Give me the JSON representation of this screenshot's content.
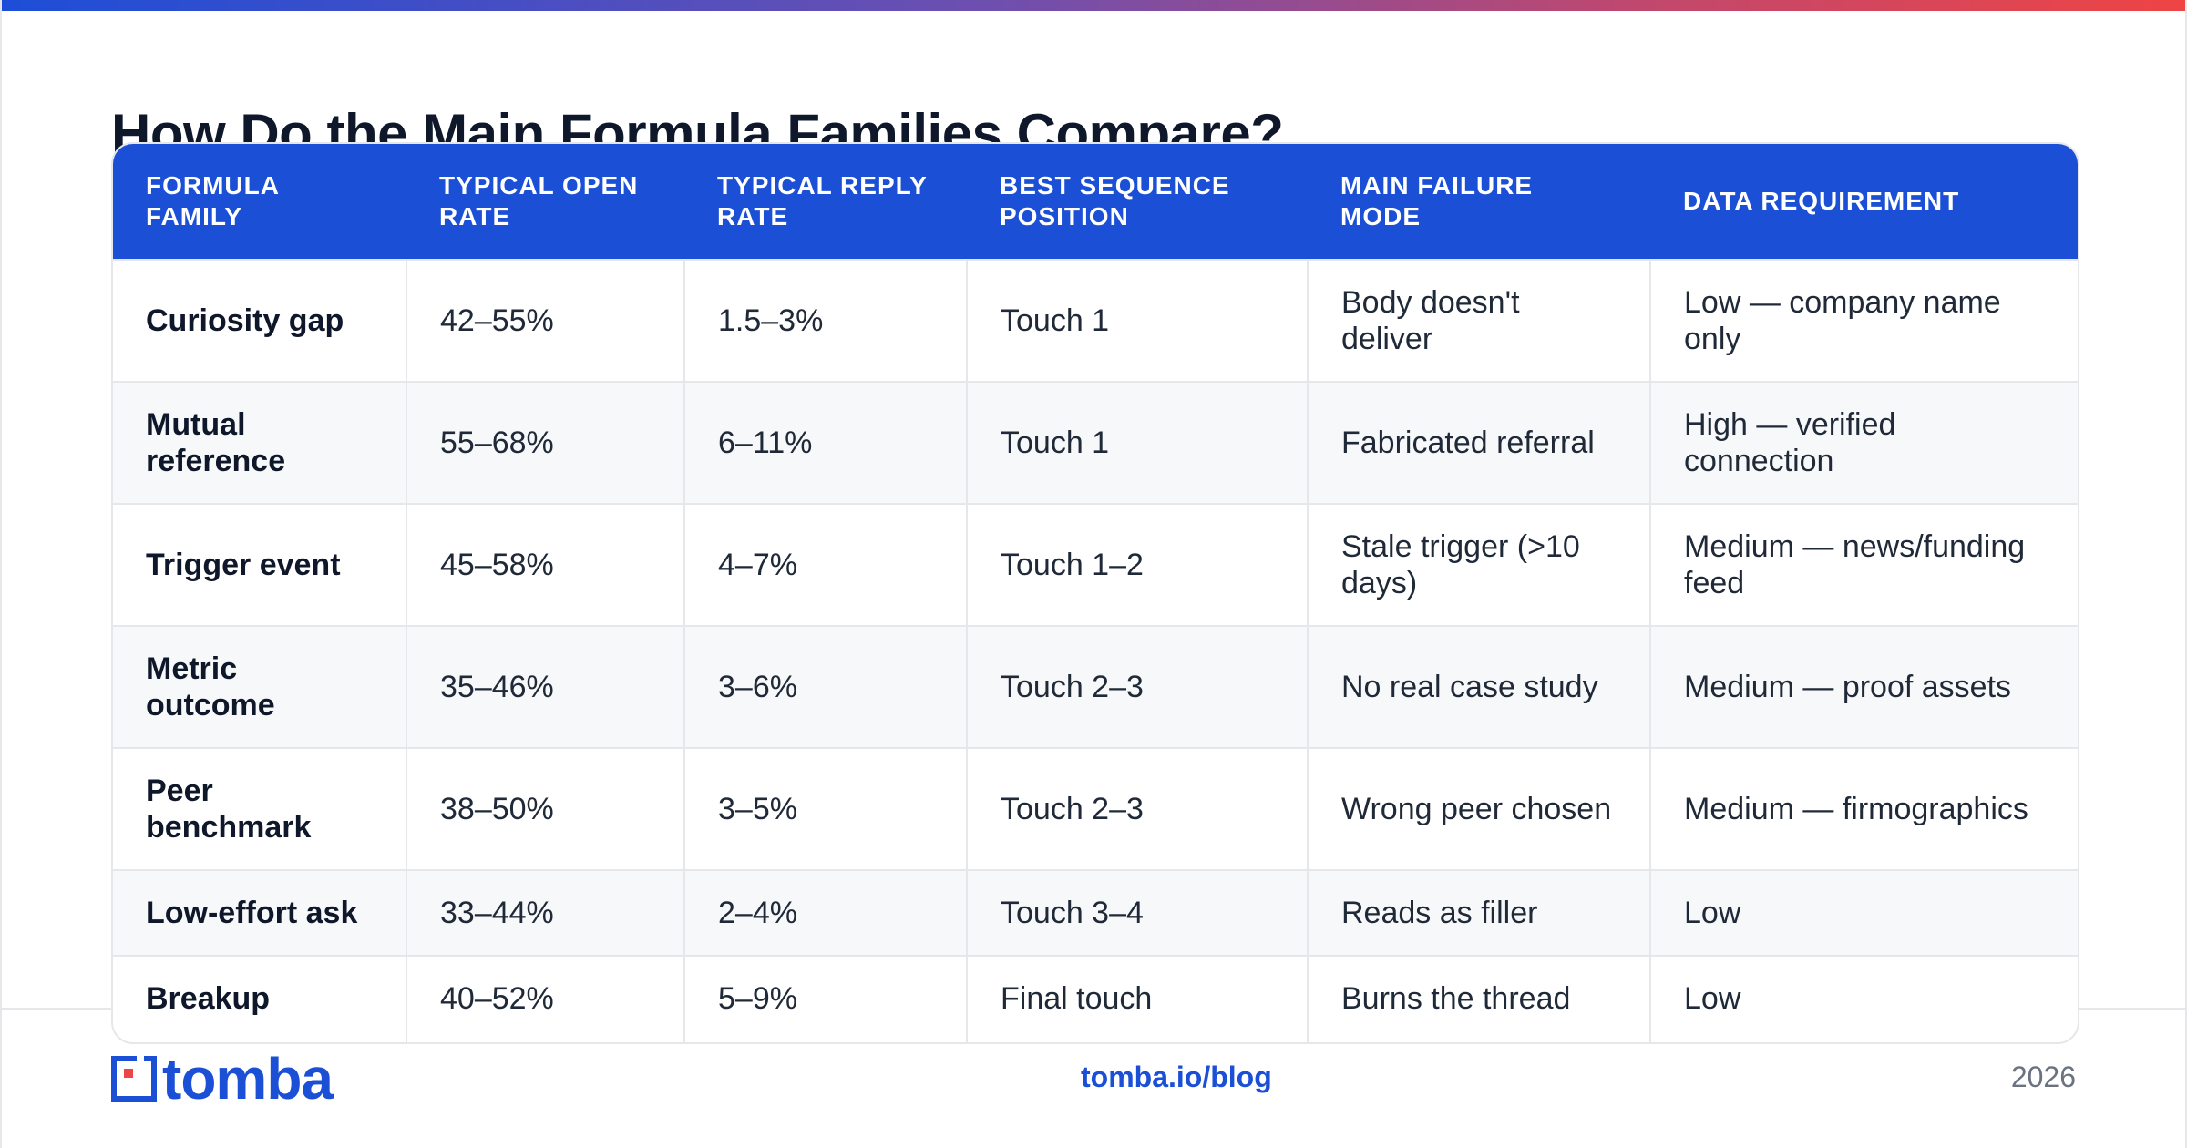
{
  "title": "How Do the Main Formula Families Compare?",
  "table": {
    "headers": [
      "FORMULA FAMILY",
      "TYPICAL OPEN RATE",
      "TYPICAL REPLY RATE",
      "BEST SEQUENCE POSITION",
      "MAIN FAILURE MODE",
      "DATA REQUIREMENT"
    ],
    "rows": [
      [
        "Curiosity gap",
        "42–55%",
        "1.5–3%",
        "Touch 1",
        "Body doesn't deliver",
        "Low — company name only"
      ],
      [
        "Mutual reference",
        "55–68%",
        "6–11%",
        "Touch 1",
        "Fabricated referral",
        "High — verified connection"
      ],
      [
        "Trigger event",
        "45–58%",
        "4–7%",
        "Touch 1–2",
        "Stale trigger (>10 days)",
        "Medium — news/funding feed"
      ],
      [
        "Metric outcome",
        "35–46%",
        "3–6%",
        "Touch 2–3",
        "No real case study",
        "Medium — proof assets"
      ],
      [
        "Peer benchmark",
        "38–50%",
        "3–5%",
        "Touch 2–3",
        "Wrong peer chosen",
        "Medium — firmographics"
      ],
      [
        "Low-effort ask",
        "33–44%",
        "2–4%",
        "Touch 3–4",
        "Reads as filler",
        "Low"
      ],
      [
        "Breakup",
        "40–52%",
        "5–9%",
        "Final touch",
        "Burns the thread",
        "Low"
      ]
    ]
  },
  "footer": {
    "logo_text": "tomba",
    "link": "tomba.io/blog",
    "year": "2026"
  },
  "colors": {
    "accent": "#1a4fd6",
    "header_bg": "#1a4fd6",
    "alt_row": "#f7f8fa",
    "border": "#e5e7eb"
  }
}
